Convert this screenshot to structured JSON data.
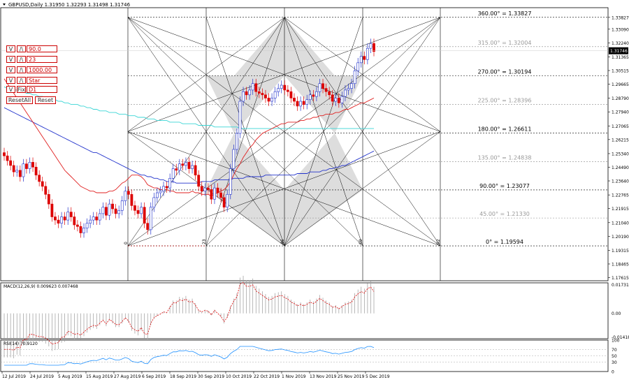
{
  "header": {
    "title": "GBPUSD,Daily",
    "ohlc": "1.31950 1.32293 1.31498 1.31746",
    "current_price": "1.31746"
  },
  "controls": {
    "rows": [
      {
        "dec": "V",
        "inc": "/\\",
        "value": "90.0"
      },
      {
        "dec": "V",
        "inc": "/\\",
        "value": "23"
      },
      {
        "dec": "V",
        "inc": "/\\",
        "value": "1000.00"
      },
      {
        "dec": "V",
        "inc": "/\\",
        "value": "Star"
      },
      {
        "dec": "V",
        "inc": "Fix",
        "value": "D1"
      }
    ],
    "reset_all": "ResetAll",
    "reset": "Reset"
  },
  "gann_levels": [
    {
      "label": "360.00° = 1.33827",
      "price": 1.33827,
      "major": true
    },
    {
      "label": "315.00° = 1.32004",
      "price": 1.32004,
      "major": false
    },
    {
      "label": "270.00° = 1.30194",
      "price": 1.30194,
      "major": true
    },
    {
      "label": "225.00° = 1.28396",
      "price": 1.28396,
      "major": false
    },
    {
      "label": "180.00° = 1.26611",
      "price": 1.26611,
      "major": true
    },
    {
      "label": "135.00° = 1.24838",
      "price": 1.24838,
      "major": false
    },
    {
      "label": "90.00° = 1.23077",
      "price": 1.23077,
      "major": true
    },
    {
      "label": "45.00° = 1.21330",
      "price": 1.2133,
      "major": false
    },
    {
      "label": "0° = 1.19594",
      "price": 1.19594,
      "major": true
    }
  ],
  "time_marks": [
    "0",
    "23",
    "46",
    "69",
    "92"
  ],
  "chart_data": {
    "type": "candlestick",
    "symbol": "GBPUSD",
    "timeframe": "Daily",
    "y_ticks": [
      "1.33827",
      "1.33090",
      "1.32240",
      "1.31365",
      "1.30515",
      "1.29665",
      "1.28790",
      "1.27940",
      "1.27065",
      "1.26215",
      "1.25340",
      "1.24490",
      "1.23640",
      "1.22765",
      "1.21915",
      "1.21040",
      "1.20190",
      "1.19315",
      "1.18465",
      "1.17615"
    ],
    "x_ticks": [
      "12 Jul 2019",
      "24 Jul 2019",
      "5 Aug 2019",
      "15 Aug 2019",
      "27 Aug 2019",
      "6 Sep 2019",
      "18 Sep 2019",
      "30 Sep 2019",
      "10 Oct 2019",
      "22 Oct 2019",
      "1 Nov 2019",
      "13 Nov 2019",
      "25 Nov 2019",
      "5 Dec 2019"
    ],
    "ylim": [
      1.1742,
      1.3443
    ],
    "closes": [
      1.252,
      1.249,
      1.246,
      1.242,
      1.243,
      1.239,
      1.247,
      1.244,
      1.248,
      1.245,
      1.24,
      1.236,
      1.233,
      1.228,
      1.222,
      1.214,
      1.212,
      1.21,
      1.214,
      1.212,
      1.217,
      1.214,
      1.209,
      1.208,
      1.204,
      1.207,
      1.21,
      1.212,
      1.214,
      1.212,
      1.216,
      1.22,
      1.215,
      1.222,
      1.219,
      1.216,
      1.218,
      1.224,
      1.23,
      1.228,
      1.221,
      1.218,
      1.216,
      1.22,
      1.21,
      1.206,
      1.22,
      1.226,
      1.229,
      1.23,
      1.233,
      1.232,
      1.238,
      1.244,
      1.243,
      1.247,
      1.246,
      1.248,
      1.244,
      1.246,
      1.24,
      1.233,
      1.23,
      1.232,
      1.231,
      1.225,
      1.232,
      1.229,
      1.226,
      1.22,
      1.228,
      1.244,
      1.256,
      1.266,
      1.286,
      1.292,
      1.29,
      1.293,
      1.297,
      1.292,
      1.291,
      1.29,
      1.288,
      1.286,
      1.288,
      1.292,
      1.294,
      1.296,
      1.293,
      1.292,
      1.288,
      1.286,
      1.283,
      1.286,
      1.284,
      1.287,
      1.29,
      1.289,
      1.292,
      1.297,
      1.294,
      1.292,
      1.29,
      1.286,
      1.288,
      1.285,
      1.289,
      1.293,
      1.294,
      1.297,
      1.305,
      1.31,
      1.314,
      1.312,
      1.319,
      1.322,
      1.317
    ],
    "ma_red": [
      1.3,
      1.297,
      1.294,
      1.291,
      1.288,
      1.285,
      1.282,
      1.279,
      1.276,
      1.273,
      1.27,
      1.267,
      1.264,
      1.261,
      1.258,
      1.255,
      1.252,
      1.249,
      1.246,
      1.243,
      1.241,
      1.239,
      1.237,
      1.235,
      1.233,
      1.232,
      1.231,
      1.23,
      1.23,
      1.229,
      1.229,
      1.229,
      1.229,
      1.23,
      1.23,
      1.231,
      1.233,
      1.235,
      1.236,
      1.238,
      1.24,
      1.24,
      1.24,
      1.239,
      1.237,
      1.234,
      1.233,
      1.232,
      1.232,
      1.231,
      1.231,
      1.231,
      1.23,
      1.23,
      1.229,
      1.229,
      1.229,
      1.229,
      1.229,
      1.23,
      1.229,
      1.229,
      1.228,
      1.228,
      1.228,
      1.227,
      1.228,
      1.229,
      1.23,
      1.231,
      1.233,
      1.236,
      1.24,
      1.244,
      1.247,
      1.251,
      1.254,
      1.257,
      1.259,
      1.262,
      1.264,
      1.266,
      1.267,
      1.268,
      1.269,
      1.27,
      1.271,
      1.272,
      1.272,
      1.273,
      1.273,
      1.273,
      1.273,
      1.274,
      1.274,
      1.275,
      1.275,
      1.276,
      1.276,
      1.277,
      1.277,
      1.278,
      1.278,
      1.278,
      1.279,
      1.279,
      1.28,
      1.281,
      1.281,
      1.282,
      1.283,
      1.284,
      1.285,
      1.285,
      1.286,
      1.287,
      1.288
    ],
    "ma_blue": [
      1.282,
      1.281,
      1.28,
      1.279,
      1.278,
      1.277,
      1.276,
      1.275,
      1.274,
      1.273,
      1.272,
      1.271,
      1.27,
      1.269,
      1.268,
      1.267,
      1.266,
      1.265,
      1.264,
      1.263,
      1.262,
      1.261,
      1.26,
      1.259,
      1.258,
      1.257,
      1.256,
      1.255,
      1.254,
      1.254,
      1.253,
      1.252,
      1.251,
      1.25,
      1.249,
      1.248,
      1.247,
      1.246,
      1.245,
      1.244,
      1.243,
      1.242,
      1.241,
      1.24,
      1.24,
      1.239,
      1.239,
      1.238,
      1.238,
      1.237,
      1.237,
      1.236,
      1.236,
      1.236,
      1.235,
      1.235,
      1.235,
      1.235,
      1.235,
      1.235,
      1.235,
      1.235,
      1.236,
      1.236,
      1.236,
      1.236,
      1.237,
      1.237,
      1.237,
      1.237,
      1.237,
      1.237,
      1.238,
      1.238,
      1.238,
      1.238,
      1.239,
      1.239,
      1.239,
      1.239,
      1.239,
      1.239,
      1.24,
      1.24,
      1.24,
      1.24,
      1.24,
      1.24,
      1.24,
      1.24,
      1.24,
      1.24,
      1.241,
      1.241,
      1.241,
      1.241,
      1.242,
      1.242,
      1.242,
      1.242,
      1.243,
      1.243,
      1.244,
      1.244,
      1.245,
      1.245,
      1.246,
      1.246,
      1.247,
      1.248,
      1.249,
      1.25,
      1.251,
      1.252,
      1.253,
      1.254,
      1.255
    ],
    "ma_cyan": [
      1.295,
      1.294,
      1.294,
      1.293,
      1.293,
      1.292,
      1.292,
      1.291,
      1.291,
      1.29,
      1.29,
      1.289,
      1.289,
      1.288,
      1.288,
      1.287,
      1.287,
      1.286,
      1.286,
      1.285,
      1.285,
      1.284,
      1.284,
      1.284,
      1.283,
      1.283,
      1.282,
      1.282,
      1.281,
      1.281,
      1.28,
      1.28,
      1.28,
      1.279,
      1.279,
      1.279,
      1.278,
      1.278,
      1.278,
      1.277,
      1.277,
      1.277,
      1.276,
      1.276,
      1.276,
      1.275,
      1.275,
      1.275,
      1.274,
      1.274,
      1.274,
      1.274,
      1.273,
      1.273,
      1.273,
      1.273,
      1.272,
      1.272,
      1.272,
      1.272,
      1.272,
      1.271,
      1.271,
      1.271,
      1.271,
      1.271,
      1.27,
      1.27,
      1.27,
      1.27,
      1.27,
      1.27,
      1.27,
      1.27,
      1.269,
      1.269,
      1.269,
      1.269,
      1.269,
      1.269,
      1.269,
      1.269,
      1.269,
      1.269,
      1.269,
      1.269,
      1.269,
      1.269,
      1.269,
      1.269,
      1.269,
      1.269,
      1.269,
      1.269,
      1.269,
      1.269,
      1.269,
      1.269,
      1.269,
      1.269,
      1.269,
      1.269,
      1.269,
      1.269,
      1.269,
      1.269,
      1.269,
      1.269,
      1.269,
      1.269,
      1.269,
      1.269,
      1.269,
      1.269,
      1.269,
      1.269,
      1.269
    ],
    "macd": {
      "label": "MACD(12,26,9) 0.009623 0.007468",
      "y_ticks": [
        "0.017318",
        "0.00",
        "-0.014188"
      ],
      "ylim": [
        -0.0152,
        0.0183
      ]
    },
    "rsi": {
      "label": "RSI(14) 70.9120",
      "y_ticks": [
        "100",
        "70",
        "50",
        "30",
        "0"
      ],
      "ylim": [
        0,
        100
      ]
    }
  }
}
